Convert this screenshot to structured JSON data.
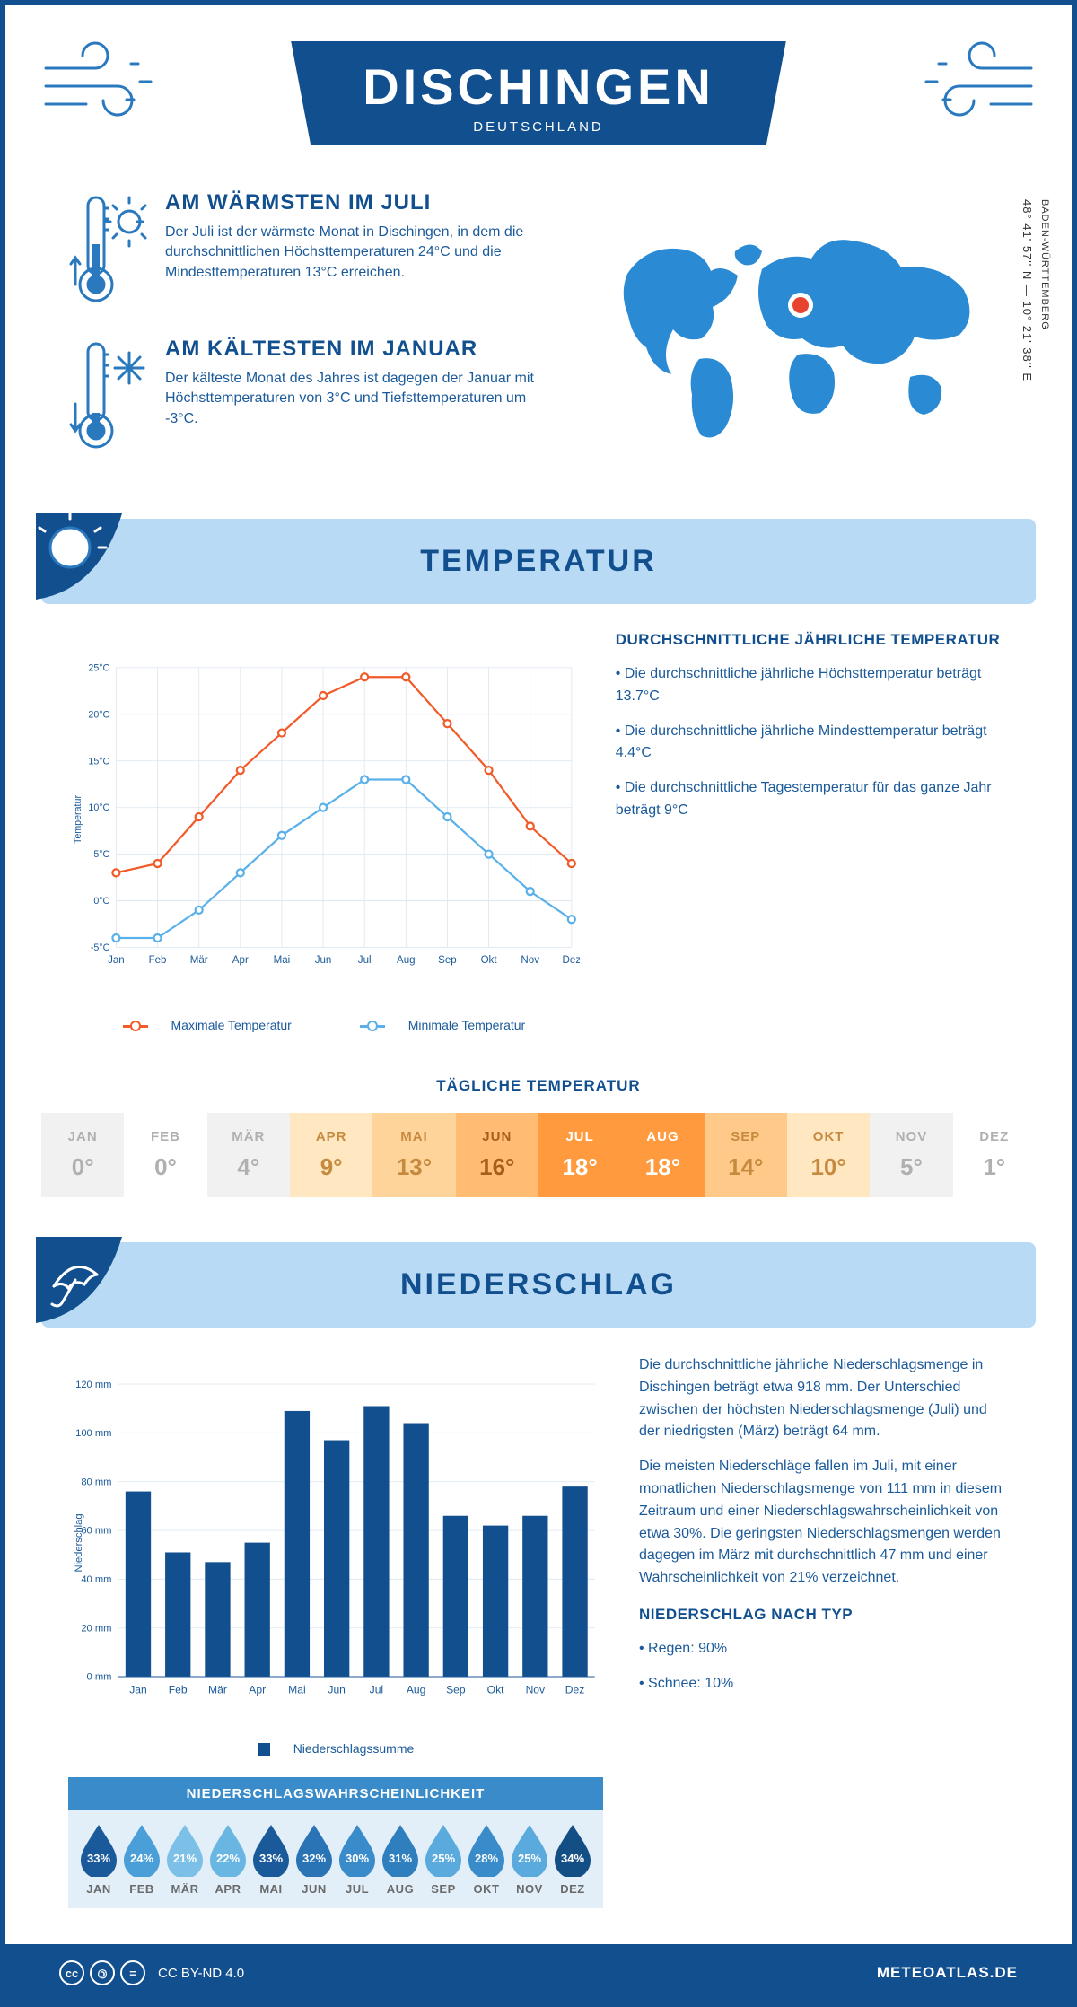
{
  "header": {
    "city": "DISCHINGEN",
    "country": "DEUTSCHLAND"
  },
  "location": {
    "coords": "48° 41' 57'' N — 10° 21' 38'' E",
    "region": "BADEN-WÜRTTEMBERG"
  },
  "overview": {
    "warm": {
      "title": "AM WÄRMSTEN IM JULI",
      "text": "Der Juli ist der wärmste Monat in Dischingen, in dem die durchschnittlichen Höchsttemperaturen 24°C und die Mindesttemperaturen 13°C erreichen."
    },
    "cold": {
      "title": "AM KÄLTESTEN IM JANUAR",
      "text": "Der kälteste Monat des Jahres ist dagegen der Januar mit Höchsttemperaturen von 3°C und Tiefsttemperaturen um -3°C."
    }
  },
  "temperature": {
    "section_title": "TEMPERATUR",
    "months": [
      "Jan",
      "Feb",
      "Mär",
      "Apr",
      "Mai",
      "Jun",
      "Jul",
      "Aug",
      "Sep",
      "Okt",
      "Nov",
      "Dez"
    ],
    "max_series": {
      "label": "Maximale Temperatur",
      "color": "#f15a29",
      "values": [
        3,
        4,
        9,
        14,
        18,
        22,
        24,
        24,
        19,
        14,
        8,
        4
      ]
    },
    "min_series": {
      "label": "Minimale Temperatur",
      "color": "#5ab0e8",
      "values": [
        -4,
        -4,
        -1,
        3,
        7,
        10,
        13,
        13,
        9,
        5,
        1,
        -2
      ]
    },
    "y_axis": {
      "min": -5,
      "max": 25,
      "step": 5,
      "label": "Temperatur"
    },
    "grid_color": "#dfe8f0",
    "text_title": "DURCHSCHNITTLICHE JÄHRLICHE TEMPERATUR",
    "bullets": [
      "• Die durchschnittliche jährliche Höchsttemperatur beträgt 13.7°C",
      "• Die durchschnittliche jährliche Mindesttemperatur beträgt 4.4°C",
      "• Die durchschnittliche Tagestemperatur für das ganze Jahr beträgt 9°C"
    ],
    "daily_title": "TÄGLICHE TEMPERATUR",
    "daily": {
      "months": [
        "JAN",
        "FEB",
        "MÄR",
        "APR",
        "MAI",
        "JUN",
        "JUL",
        "AUG",
        "SEP",
        "OKT",
        "NOV",
        "DEZ"
      ],
      "values": [
        "0°",
        "0°",
        "4°",
        "9°",
        "13°",
        "16°",
        "18°",
        "18°",
        "14°",
        "10°",
        "5°",
        "1°"
      ],
      "bg_colors": [
        "#f1f1f1",
        "#ffffff",
        "#f1f1f1",
        "#ffe7c2",
        "#ffd49b",
        "#ffbc72",
        "#ff9a3e",
        "#ff9a3e",
        "#ffc98a",
        "#ffe7c2",
        "#f1f1f1",
        "#ffffff"
      ],
      "text_colors": [
        "#b0b0b0",
        "#b0b0b0",
        "#b0b0b0",
        "#c68a3e",
        "#c68a3e",
        "#a65f1a",
        "#ffffff",
        "#ffffff",
        "#c68a3e",
        "#c68a3e",
        "#b0b0b0",
        "#b0b0b0"
      ]
    }
  },
  "precip": {
    "section_title": "NIEDERSCHLAG",
    "months": [
      "Jan",
      "Feb",
      "Mär",
      "Apr",
      "Mai",
      "Jun",
      "Jul",
      "Aug",
      "Sep",
      "Okt",
      "Nov",
      "Dez"
    ],
    "bar_color": "#114f8e",
    "y_axis": {
      "min": 0,
      "max": 120,
      "step": 20,
      "label": "Niederschlag"
    },
    "grid_color": "#dfe8f0",
    "values": [
      76,
      51,
      47,
      55,
      109,
      97,
      111,
      104,
      66,
      62,
      66,
      78
    ],
    "series_label": "Niederschlagssumme",
    "para1": "Die durchschnittliche jährliche Niederschlagsmenge in Dischingen beträgt etwa 918 mm. Der Unterschied zwischen der höchsten Niederschlagsmenge (Juli) und der niedrigsten (März) beträgt 64 mm.",
    "para2": "Die meisten Niederschläge fallen im Juli, mit einer monatlichen Niederschlagsmenge von 111 mm in diesem Zeitraum und einer Niederschlagswahrscheinlichkeit von etwa 30%. Die geringsten Niederschlagsmengen werden dagegen im März mit durchschnittlich 47 mm und einer Wahrscheinlichkeit von 21% verzeichnet.",
    "type_title": "NIEDERSCHLAG NACH TYP",
    "type_lines": [
      "• Regen: 90%",
      "• Schnee: 10%"
    ],
    "prob_title": "NIEDERSCHLAGSWAHRSCHEINLICHKEIT",
    "prob": {
      "months": [
        "JAN",
        "FEB",
        "MÄR",
        "APR",
        "MAI",
        "JUN",
        "JUL",
        "AUG",
        "SEP",
        "OKT",
        "NOV",
        "DEZ"
      ],
      "values": [
        "33%",
        "24%",
        "21%",
        "22%",
        "33%",
        "32%",
        "30%",
        "31%",
        "25%",
        "28%",
        "25%",
        "34%"
      ],
      "colors": [
        "#1a5a9a",
        "#4a9fd8",
        "#7cc0e8",
        "#6ab6e2",
        "#1a5a9a",
        "#2a73b5",
        "#3a8bc9",
        "#2f7fbf",
        "#5aaadd",
        "#3a8bc9",
        "#5aaadd",
        "#134f85"
      ]
    }
  },
  "footer": {
    "license": "CC BY-ND 4.0",
    "site": "METEOATLAS.DE"
  }
}
